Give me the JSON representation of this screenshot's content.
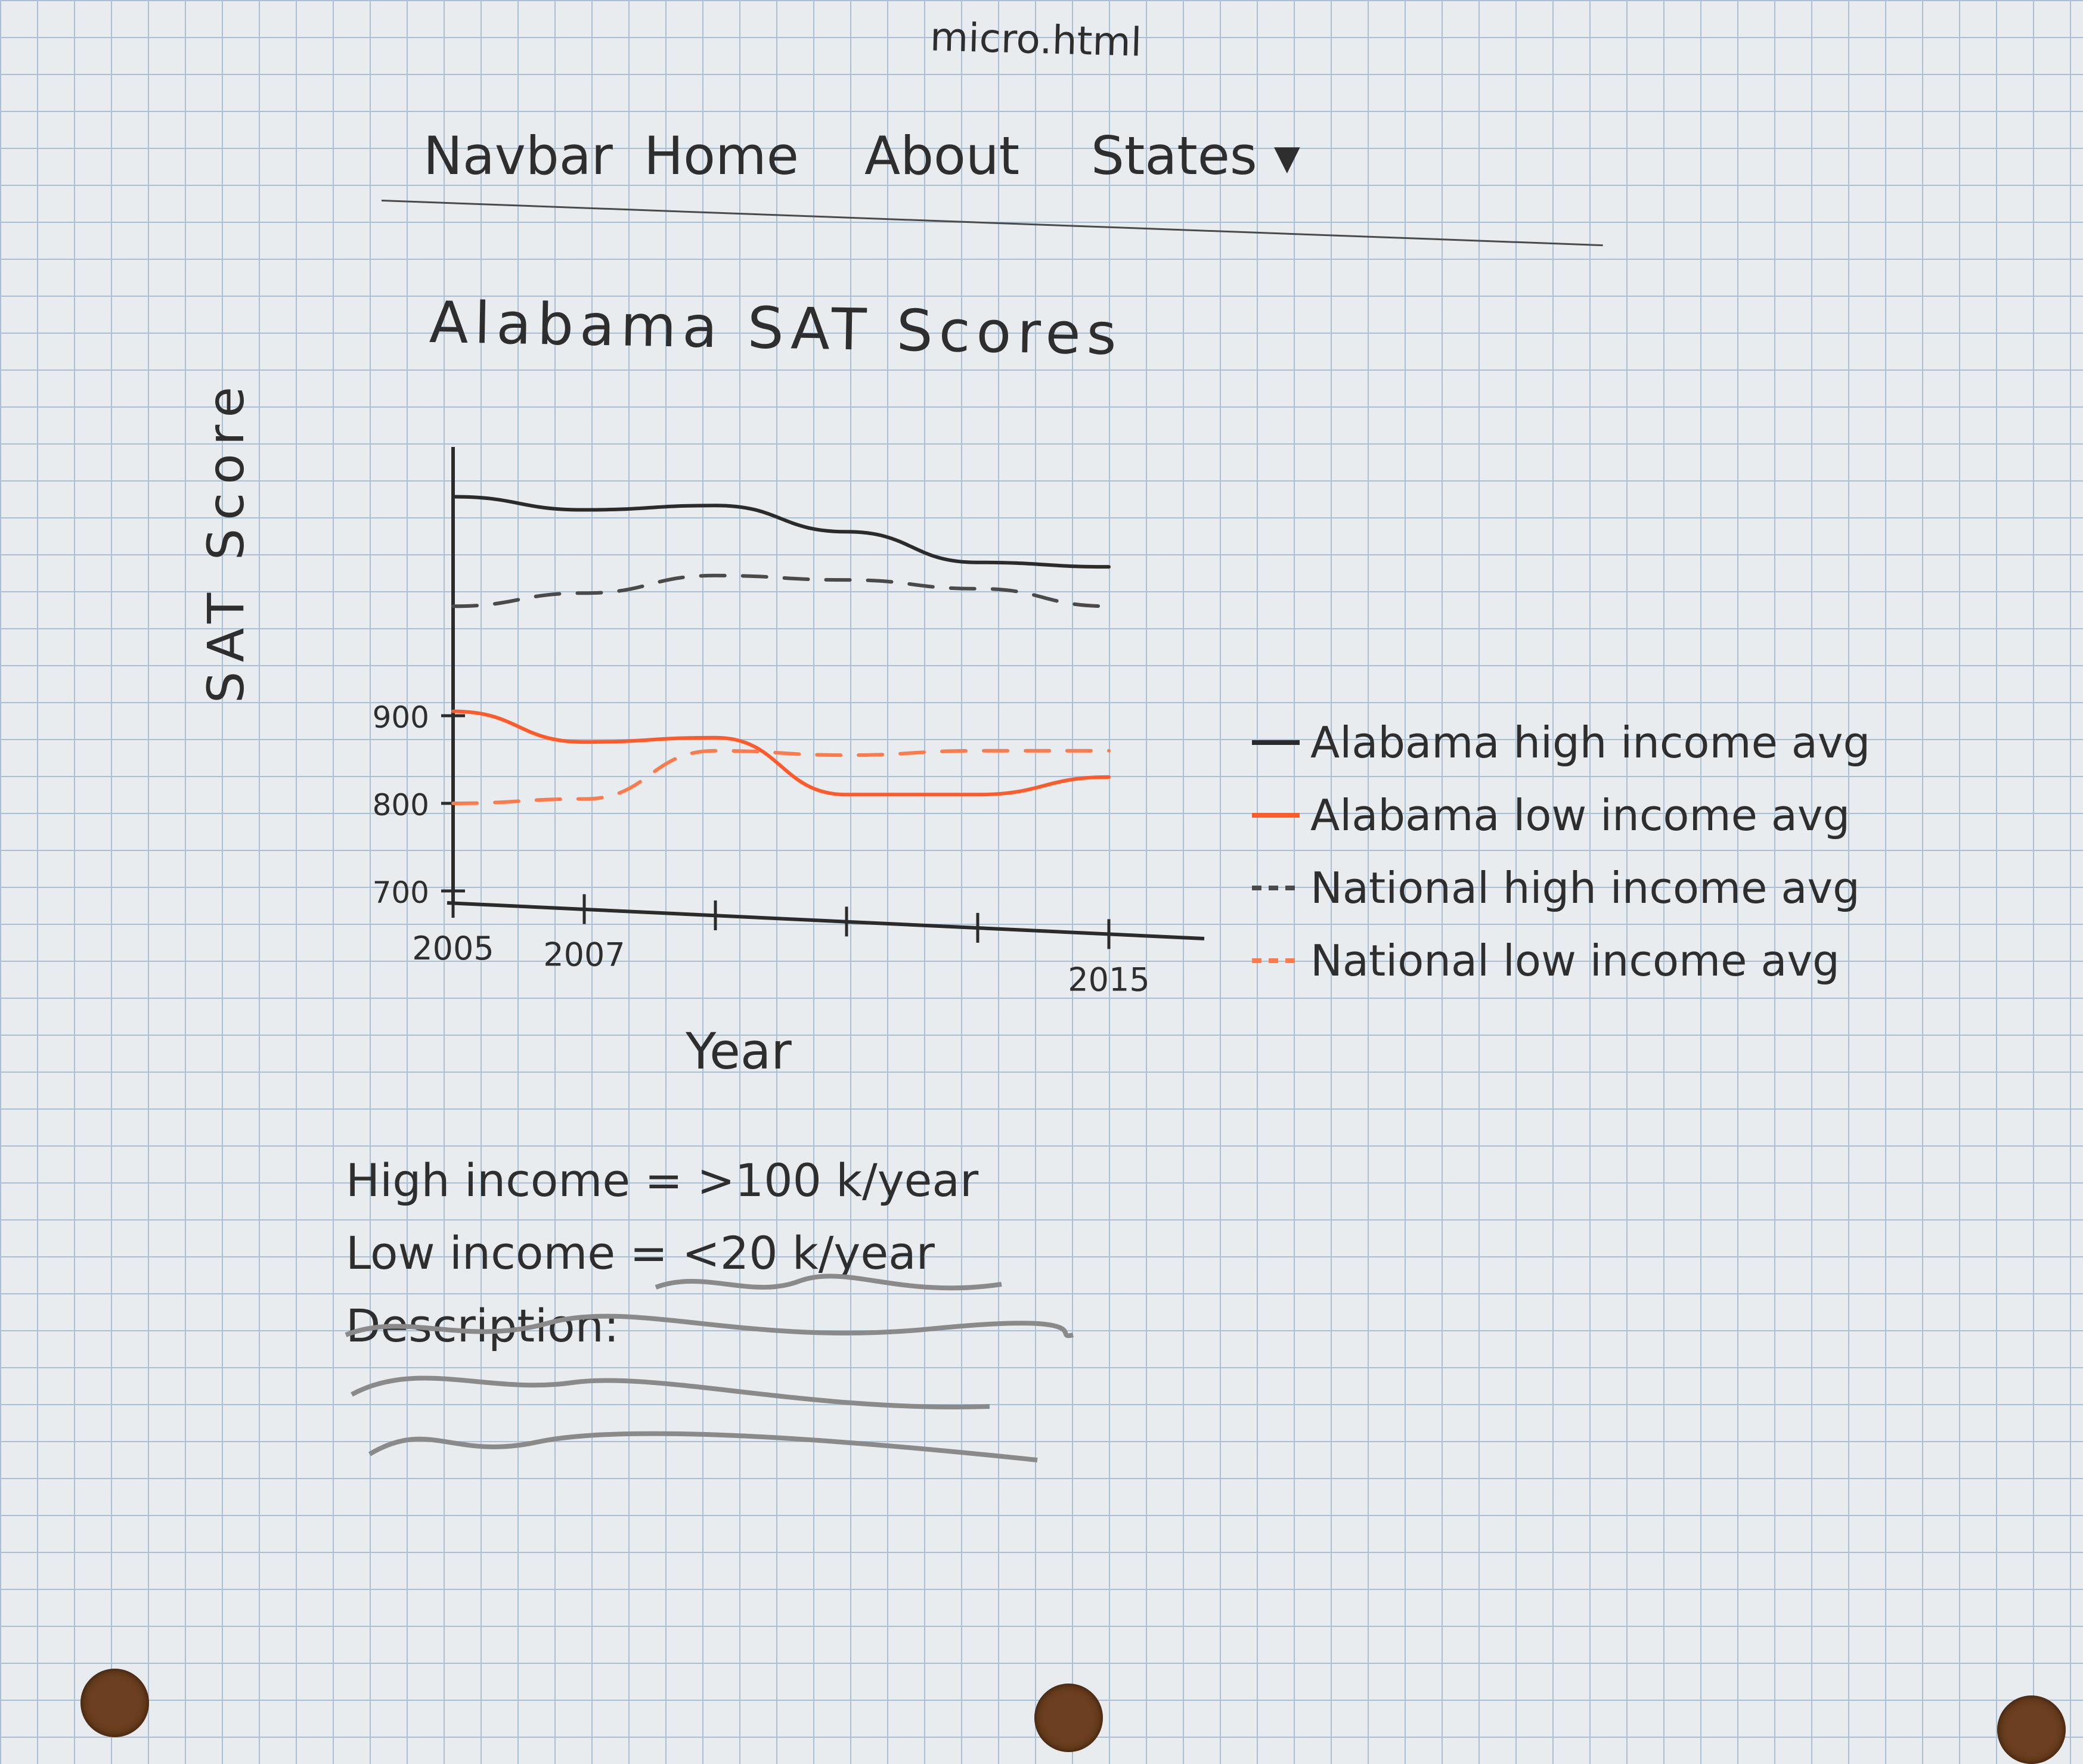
{
  "file_title": "micro.html",
  "navbar": {
    "items": [
      {
        "label": "Navbar"
      },
      {
        "label": "Home"
      },
      {
        "label": "About"
      },
      {
        "label": "States",
        "caret": "▾"
      }
    ]
  },
  "page_title": "Alabama SAT Scores",
  "chart_data": {
    "type": "line",
    "title": "",
    "xlabel": "Year",
    "ylabel": "SAT Score",
    "x_tick_labels": [
      "2005",
      "2007",
      "2015"
    ],
    "y_tick_labels": [
      "700",
      "800",
      "900"
    ],
    "x": [
      2005,
      2007,
      2009,
      2011,
      2013,
      2015
    ],
    "xlim": [
      2005,
      2015
    ],
    "ylim": [
      700,
      1200
    ],
    "series": [
      {
        "name": "Alabama high income avg",
        "color": "#2b2b2b",
        "dash": "solid",
        "values": [
          1150,
          1135,
          1140,
          1110,
          1075,
          1070
        ]
      },
      {
        "name": "Alabama low income avg",
        "color": "#ff5a2a",
        "dash": "solid",
        "values": [
          905,
          870,
          875,
          810,
          810,
          830
        ]
      },
      {
        "name": "National high income avg",
        "color": "#4a4a4a",
        "dash": "dashed",
        "values": [
          1025,
          1040,
          1060,
          1055,
          1045,
          1025
        ]
      },
      {
        "name": "National low income avg",
        "color": "#ff7a4a",
        "dash": "dashed",
        "values": [
          800,
          805,
          860,
          855,
          860,
          860
        ]
      }
    ],
    "legend_position": "right"
  },
  "notes": {
    "high_income": "High income = >100 k/year",
    "low_income": "Low income = <20 k/year",
    "description_label": "Description:"
  }
}
